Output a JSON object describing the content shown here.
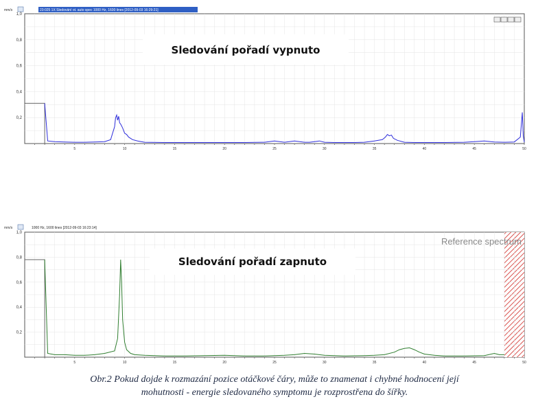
{
  "chart_data": [
    {
      "type": "line",
      "annotation": "Sledování pořadí vypnuto",
      "header_text": "23:025 1X Sledování ot. auto spec 1000 Hz, 1600 lines [2012-09-03 16:29:21]",
      "yunit": "mm/s",
      "color": "#2d2ddb",
      "xlim": [
        0,
        50
      ],
      "ylim": [
        0,
        1
      ],
      "yticks": [
        {
          "v": 0.2,
          "label": "0,2"
        },
        {
          "v": 0.4,
          "label": "0,4"
        },
        {
          "v": 0.6,
          "label": "0,6"
        },
        {
          "v": 0.8,
          "label": "0,8"
        },
        {
          "v": 1.0,
          "label": "1,0"
        }
      ],
      "xticks": [
        {
          "v": 5,
          "label": "5"
        },
        {
          "v": 10,
          "label": "10"
        },
        {
          "v": 15,
          "label": "15"
        },
        {
          "v": 20,
          "label": "20"
        },
        {
          "v": 25,
          "label": "25"
        },
        {
          "v": 30,
          "label": "30"
        },
        {
          "v": 35,
          "label": "35"
        },
        {
          "v": 40,
          "label": "40"
        },
        {
          "v": 45,
          "label": "45"
        },
        {
          "v": 50,
          "label": "50"
        }
      ],
      "step": {
        "x_end": 2,
        "y": 0.31
      },
      "series": [
        {
          "x": [
            2.0,
            2.3,
            3,
            4,
            5,
            6,
            7,
            8,
            8.6,
            9.0,
            9.1,
            9.2,
            9.3,
            9.4,
            9.5,
            9.6,
            9.8,
            10.0,
            10.2,
            10.4,
            10.8,
            11.3,
            12,
            14,
            16,
            18,
            20,
            22,
            24,
            25,
            26,
            27,
            28,
            28.5,
            29,
            29.5,
            30,
            31,
            32,
            33,
            34,
            35,
            35.8,
            36.1,
            36.3,
            36.5,
            36.7,
            36.9,
            37.3,
            38,
            39,
            40,
            42,
            44,
            45,
            46,
            47,
            48,
            49,
            49.6,
            49.8,
            49.9,
            50
          ],
          "y": [
            0.31,
            0.02,
            0.015,
            0.012,
            0.01,
            0.01,
            0.012,
            0.015,
            0.03,
            0.13,
            0.2,
            0.22,
            0.18,
            0.21,
            0.16,
            0.15,
            0.12,
            0.08,
            0.07,
            0.05,
            0.03,
            0.02,
            0.01,
            0.008,
            0.008,
            0.008,
            0.008,
            0.008,
            0.01,
            0.02,
            0.01,
            0.02,
            0.01,
            0.01,
            0.015,
            0.02,
            0.01,
            0.008,
            0.008,
            0.008,
            0.01,
            0.02,
            0.03,
            0.05,
            0.07,
            0.06,
            0.065,
            0.04,
            0.025,
            0.01,
            0.008,
            0.008,
            0.008,
            0.01,
            0.015,
            0.02,
            0.012,
            0.01,
            0.012,
            0.05,
            0.24,
            0.06,
            0.01
          ]
        }
      ]
    },
    {
      "type": "line",
      "annotation": "Sledování pořadí zapnuto",
      "header_text": "1000 Hz, 1600 lines [2012-09-03 16:23:14]",
      "yunit": "mm/s",
      "color": "#2e7d2e",
      "watermark": "Reference spectrum",
      "xlim": [
        0,
        50
      ],
      "ylim": [
        0,
        1
      ],
      "hatch_from": 48,
      "yticks": [
        {
          "v": 0.2,
          "label": "0,2"
        },
        {
          "v": 0.4,
          "label": "0,4"
        },
        {
          "v": 0.6,
          "label": "0,6"
        },
        {
          "v": 0.8,
          "label": "0,8"
        },
        {
          "v": 1.0,
          "label": "1,0"
        }
      ],
      "xticks": [
        {
          "v": 5,
          "label": "5"
        },
        {
          "v": 10,
          "label": "10"
        },
        {
          "v": 15,
          "label": "15"
        },
        {
          "v": 20,
          "label": "20"
        },
        {
          "v": 25,
          "label": "25"
        },
        {
          "v": 30,
          "label": "30"
        },
        {
          "v": 35,
          "label": "35"
        },
        {
          "v": 40,
          "label": "40"
        },
        {
          "v": 45,
          "label": "45"
        },
        {
          "v": 50,
          "label": "50"
        }
      ],
      "step": {
        "x_end": 2,
        "y": 0.78
      },
      "series": [
        {
          "x": [
            2.0,
            2.3,
            3,
            4,
            5,
            6,
            7,
            8,
            9.0,
            9.3,
            9.5,
            9.6,
            9.7,
            9.8,
            10.0,
            10.2,
            10.6,
            11,
            12,
            14,
            16,
            18,
            20,
            22,
            24,
            26,
            27,
            28,
            29,
            30,
            31,
            32,
            34,
            35,
            36,
            37,
            37.5,
            38,
            38.5,
            39,
            39.5,
            40,
            41,
            42,
            44,
            46,
            47,
            47.5,
            48
          ],
          "y": [
            0.78,
            0.03,
            0.02,
            0.02,
            0.015,
            0.015,
            0.02,
            0.03,
            0.05,
            0.15,
            0.5,
            0.78,
            0.6,
            0.3,
            0.12,
            0.06,
            0.03,
            0.02,
            0.015,
            0.01,
            0.01,
            0.012,
            0.015,
            0.01,
            0.01,
            0.015,
            0.02,
            0.03,
            0.025,
            0.015,
            0.012,
            0.01,
            0.012,
            0.015,
            0.02,
            0.04,
            0.06,
            0.07,
            0.075,
            0.06,
            0.04,
            0.025,
            0.015,
            0.01,
            0.01,
            0.012,
            0.03,
            0.02,
            0.02
          ]
        }
      ]
    }
  ],
  "caption": {
    "line1": "Obr.2 Pokud dojde k rozmazání pozice otáčkové čáry, může to znamenat i chybné hodnocení její",
    "line2": "mohutnosti  - energie sledovaného symptomu je rozprostřena do šířky."
  },
  "toolbar_icons": [
    "minus-icon",
    "lock-icon",
    "plus-icon",
    "window-icon"
  ]
}
